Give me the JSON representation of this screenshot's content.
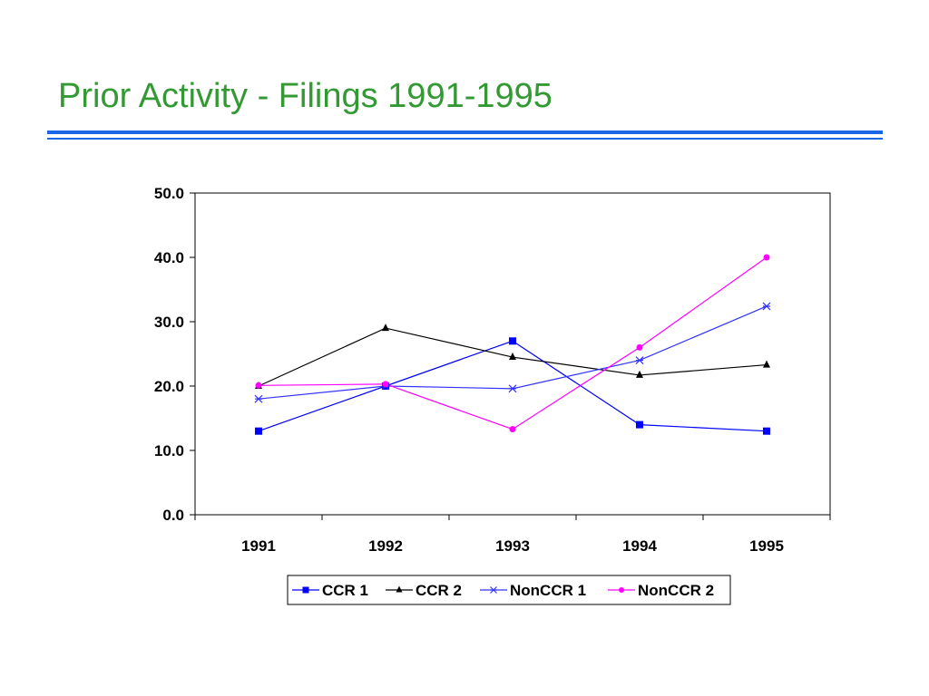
{
  "slide": {
    "title": "Prior Activity - Filings 1991-1995"
  },
  "colors": {
    "title": "#339933",
    "rule": "#1a66e6"
  },
  "chart_data": {
    "type": "line",
    "title": "",
    "xlabel": "",
    "ylabel": "",
    "categories": [
      "1991",
      "1992",
      "1993",
      "1994",
      "1995"
    ],
    "ylim": [
      0,
      50
    ],
    "yticks": [
      "0.0",
      "10.0",
      "20.0",
      "30.0",
      "40.0",
      "50.0"
    ],
    "grid": false,
    "legend_position": "bottom",
    "series": [
      {
        "name": "CCR 1",
        "values": [
          13.0,
          20.0,
          27.0,
          14.0,
          13.0
        ],
        "color": "#0000ff",
        "marker": "square"
      },
      {
        "name": "CCR 2",
        "values": [
          20.0,
          29.0,
          24.5,
          21.7,
          23.3
        ],
        "color": "#000000",
        "marker": "triangle"
      },
      {
        "name": "NonCCR 1",
        "values": [
          18.0,
          20.0,
          19.6,
          24.0,
          32.4
        ],
        "color": "#3333ff",
        "marker": "star"
      },
      {
        "name": "NonCCR 2",
        "values": [
          20.1,
          20.3,
          13.3,
          26.0,
          40.0
        ],
        "color": "#ff00ff",
        "marker": "circle"
      }
    ]
  }
}
